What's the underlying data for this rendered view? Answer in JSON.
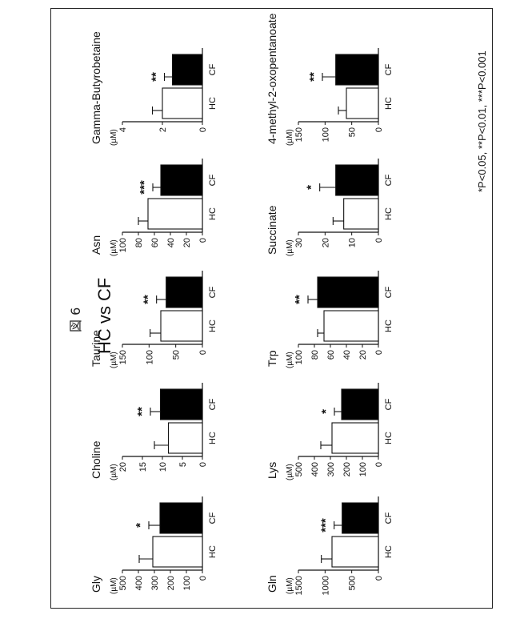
{
  "figure_label": "図 6",
  "title": "HC vs CF",
  "footnote": "*P<0.05, **P<0.01, ***P<0.001",
  "categories": [
    "HC",
    "CF"
  ],
  "unit": "(µM)",
  "colors": {
    "HC": "#ffffff",
    "CF": "#000000",
    "axis": "#111111"
  },
  "chart_data": [
    {
      "type": "bar",
      "title": "Gly",
      "ylabel": "(µM)",
      "categories": [
        "HC",
        "CF"
      ],
      "values": [
        310,
        265
      ],
      "errors": [
        85,
        70
      ],
      "ylim": [
        0,
        500
      ],
      "yticks": [
        "0",
        "100",
        "200",
        "300",
        "400",
        "500"
      ],
      "significance": "*"
    },
    {
      "type": "bar",
      "title": "Choline",
      "ylabel": "(µM)",
      "categories": [
        "HC",
        "CF"
      ],
      "values": [
        8.5,
        10.5
      ],
      "errors": [
        3.5,
        2.5
      ],
      "ylim": [
        0,
        20
      ],
      "yticks": [
        "0",
        "5",
        "10",
        "15",
        "20"
      ],
      "significance": "**"
    },
    {
      "type": "bar",
      "title": "Taurine",
      "ylabel": "(µM)",
      "categories": [
        "HC",
        "CF"
      ],
      "values": [
        78,
        68
      ],
      "errors": [
        20,
        18
      ],
      "ylim": [
        0,
        150
      ],
      "yticks": [
        "0",
        "50",
        "100",
        "150"
      ],
      "significance": "**"
    },
    {
      "type": "bar",
      "title": "Asn",
      "ylabel": "(µM)",
      "categories": [
        "HC",
        "CF"
      ],
      "values": [
        68,
        52
      ],
      "errors": [
        12,
        10
      ],
      "ylim": [
        0,
        100
      ],
      "yticks": [
        "0",
        "20",
        "40",
        "60",
        "80",
        "100"
      ],
      "significance": "***"
    },
    {
      "type": "bar",
      "title": "Gamma-Butyrobetaine",
      "ylabel": "(µM)",
      "categories": [
        "HC",
        "CF"
      ],
      "values": [
        2.0,
        1.5
      ],
      "errors": [
        0.5,
        0.4
      ],
      "ylim": [
        0,
        4
      ],
      "yticks": [
        "0",
        "2",
        "4"
      ],
      "significance": "**"
    },
    {
      "type": "bar",
      "title": "Gln",
      "ylabel": "(µM)",
      "categories": [
        "HC",
        "CF"
      ],
      "values": [
        870,
        680
      ],
      "errors": [
        200,
        150
      ],
      "ylim": [
        0,
        1500
      ],
      "yticks": [
        "0",
        "500",
        "1000",
        "1500"
      ],
      "significance": "***"
    },
    {
      "type": "bar",
      "title": "Lys",
      "ylabel": "(µM)",
      "categories": [
        "HC",
        "CF"
      ],
      "values": [
        290,
        230
      ],
      "errors": [
        70,
        45
      ],
      "ylim": [
        0,
        500
      ],
      "yticks": [
        "0",
        "100",
        "200",
        "300",
        "400",
        "500"
      ],
      "significance": "*"
    },
    {
      "type": "bar",
      "title": "Trp",
      "ylabel": "(µM)",
      "categories": [
        "HC",
        "CF"
      ],
      "values": [
        68,
        76
      ],
      "errors": [
        8,
        12
      ],
      "ylim": [
        0,
        100
      ],
      "yticks": [
        "0",
        "20",
        "40",
        "60",
        "80",
        "100"
      ],
      "significance": "**"
    },
    {
      "type": "bar",
      "title": "Succinate",
      "ylabel": "(µM)",
      "categories": [
        "HC",
        "CF"
      ],
      "values": [
        13,
        16
      ],
      "errors": [
        4,
        6
      ],
      "ylim": [
        0,
        30
      ],
      "yticks": [
        "0",
        "10",
        "20",
        "30"
      ],
      "significance": "*"
    },
    {
      "type": "bar",
      "title": "4-methyl-2-oxopentanoate",
      "ylabel": "(µM)",
      "categories": [
        "HC",
        "CF"
      ],
      "values": [
        60,
        80
      ],
      "errors": [
        15,
        25
      ],
      "ylim": [
        0,
        150
      ],
      "yticks": [
        "0",
        "50",
        "100",
        "150"
      ],
      "significance": "**"
    }
  ]
}
